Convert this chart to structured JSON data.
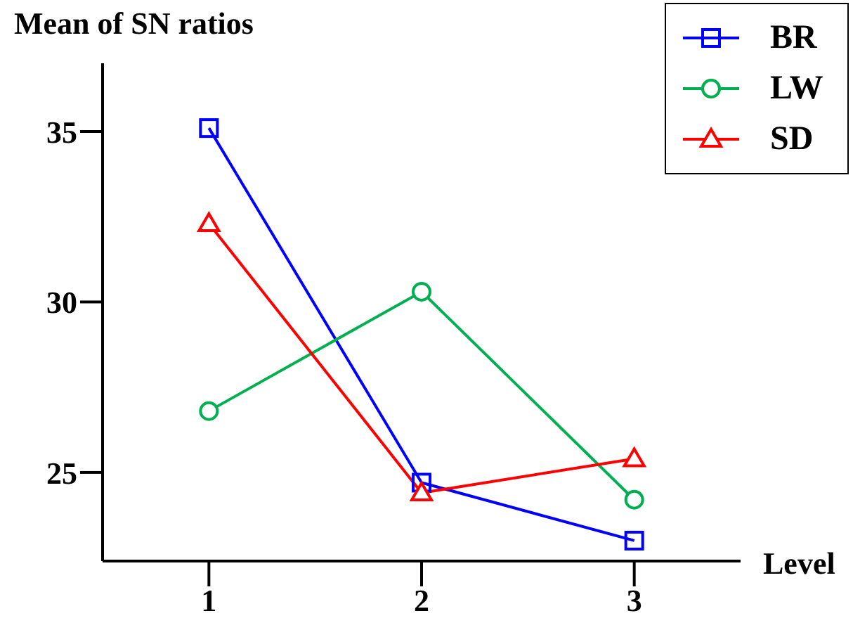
{
  "chart_data": {
    "type": "line",
    "ylabel": "Mean of SN ratios",
    "xlabel": "Level",
    "categories": [
      "1",
      "2",
      "3"
    ],
    "ylim": [
      22.4,
      37
    ],
    "yticks": [
      25,
      30,
      35
    ],
    "grid": false,
    "legend": "top right",
    "line_style": "solid",
    "series": [
      {
        "name": "BR",
        "color": "#0000ff",
        "marker": "square",
        "values": [
          35.1,
          24.7,
          23.0
        ]
      },
      {
        "name": "LW",
        "color": "#00b050",
        "marker": "circle",
        "values": [
          26.8,
          30.3,
          24.2
        ]
      },
      {
        "name": "SD",
        "color": "#ff0000",
        "marker": "triangle",
        "values": [
          32.3,
          24.4,
          25.4
        ]
      }
    ]
  }
}
